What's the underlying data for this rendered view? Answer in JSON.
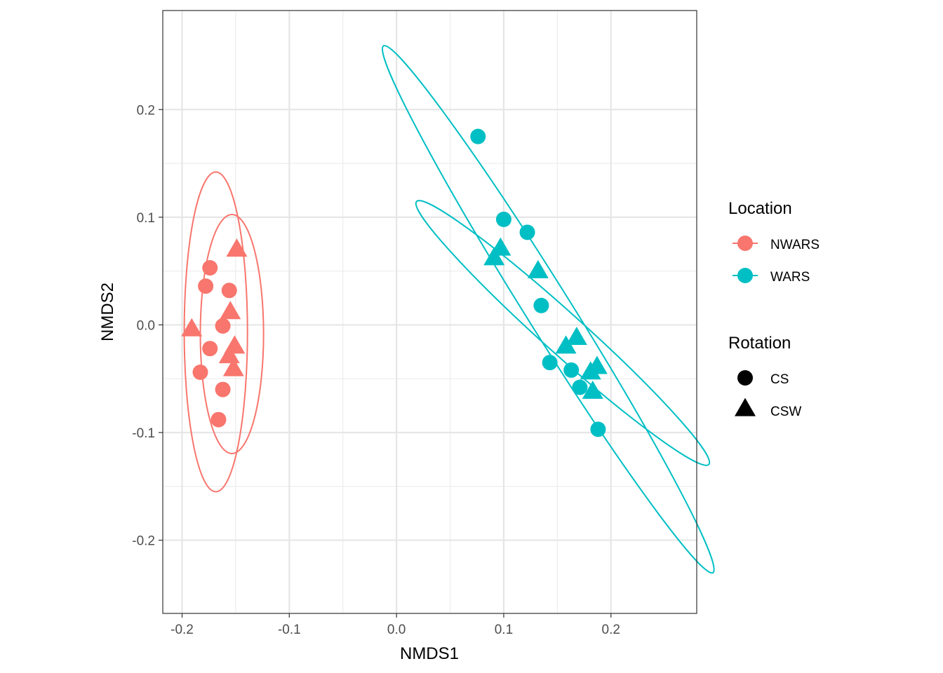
{
  "chart_data": {
    "type": "scatter",
    "xlabel": "NMDS1",
    "ylabel": "NMDS2",
    "xlim": [
      -0.218,
      0.28
    ],
    "ylim": [
      -0.268,
      0.292
    ],
    "xticks": [
      -0.2,
      -0.1,
      0.0,
      0.1,
      0.2
    ],
    "xtick_labels": [
      "-0.2",
      "-0.1",
      "0.0",
      "0.1",
      "0.2"
    ],
    "yticks": [
      -0.2,
      -0.1,
      0.0,
      0.1,
      0.2
    ],
    "ytick_labels": [
      "-0.2",
      "-0.1",
      "0.0",
      "0.1",
      "0.2"
    ],
    "grid": true,
    "legend_position": "right",
    "colors": {
      "NWARS": "#F8766D",
      "WARS": "#00BFC4"
    },
    "legend": {
      "location": {
        "title": "Location",
        "items": [
          "NWARS",
          "WARS"
        ]
      },
      "rotation": {
        "title": "Rotation",
        "items": [
          "CS",
          "CSW"
        ]
      }
    },
    "points": [
      {
        "location": "NWARS",
        "rotation": "CS",
        "x": -0.174,
        "y": 0.053
      },
      {
        "location": "NWARS",
        "rotation": "CS",
        "x": -0.178,
        "y": 0.036
      },
      {
        "location": "NWARS",
        "rotation": "CS",
        "x": -0.156,
        "y": 0.032
      },
      {
        "location": "NWARS",
        "rotation": "CS",
        "x": -0.162,
        "y": -0.001
      },
      {
        "location": "NWARS",
        "rotation": "CS",
        "x": -0.174,
        "y": -0.022
      },
      {
        "location": "NWARS",
        "rotation": "CS",
        "x": -0.183,
        "y": -0.044
      },
      {
        "location": "NWARS",
        "rotation": "CS",
        "x": -0.162,
        "y": -0.06
      },
      {
        "location": "NWARS",
        "rotation": "CS",
        "x": -0.166,
        "y": -0.088
      },
      {
        "location": "NWARS",
        "rotation": "CSW",
        "x": -0.149,
        "y": 0.069
      },
      {
        "location": "NWARS",
        "rotation": "CSW",
        "x": -0.191,
        "y": -0.005
      },
      {
        "location": "NWARS",
        "rotation": "CSW",
        "x": -0.155,
        "y": 0.011
      },
      {
        "location": "NWARS",
        "rotation": "CSW",
        "x": -0.151,
        "y": -0.021
      },
      {
        "location": "NWARS",
        "rotation": "CSW",
        "x": -0.156,
        "y": -0.03
      },
      {
        "location": "NWARS",
        "rotation": "CSW",
        "x": -0.152,
        "y": -0.042
      },
      {
        "location": "WARS",
        "rotation": "CS",
        "x": 0.076,
        "y": 0.175
      },
      {
        "location": "WARS",
        "rotation": "CS",
        "x": 0.1,
        "y": 0.098
      },
      {
        "location": "WARS",
        "rotation": "CS",
        "x": 0.122,
        "y": 0.086
      },
      {
        "location": "WARS",
        "rotation": "CS",
        "x": 0.135,
        "y": 0.018
      },
      {
        "location": "WARS",
        "rotation": "CS",
        "x": 0.143,
        "y": -0.035
      },
      {
        "location": "WARS",
        "rotation": "CS",
        "x": 0.163,
        "y": -0.042
      },
      {
        "location": "WARS",
        "rotation": "CS",
        "x": 0.171,
        "y": -0.058
      },
      {
        "location": "WARS",
        "rotation": "CS",
        "x": 0.188,
        "y": -0.097
      },
      {
        "location": "WARS",
        "rotation": "CSW",
        "x": 0.097,
        "y": 0.07
      },
      {
        "location": "WARS",
        "rotation": "CSW",
        "x": 0.091,
        "y": 0.061
      },
      {
        "location": "WARS",
        "rotation": "CSW",
        "x": 0.132,
        "y": 0.049
      },
      {
        "location": "WARS",
        "rotation": "CSW",
        "x": 0.168,
        "y": -0.013
      },
      {
        "location": "WARS",
        "rotation": "CSW",
        "x": 0.158,
        "y": -0.021
      },
      {
        "location": "WARS",
        "rotation": "CSW",
        "x": 0.187,
        "y": -0.04
      },
      {
        "location": "WARS",
        "rotation": "CSW",
        "x": 0.181,
        "y": -0.045
      },
      {
        "location": "WARS",
        "rotation": "CSW",
        "x": 0.183,
        "y": -0.063
      }
    ],
    "ellipses": [
      {
        "location": "NWARS",
        "rotation": "CS",
        "cx": -0.1685,
        "cy": -0.0065,
        "rx": 0.0295,
        "ry": 0.1485,
        "angle_deg": 0
      },
      {
        "location": "NWARS",
        "rotation": "CSW",
        "cx": -0.1535,
        "cy": -0.0085,
        "rx": 0.0295,
        "ry": 0.111,
        "angle_deg": 0
      },
      {
        "location": "WARS",
        "rotation": "CS",
        "cx": 0.1415,
        "cy": 0.0145,
        "rx": 0.021,
        "ry": 0.2885,
        "angle_deg": -32
      },
      {
        "location": "WARS",
        "rotation": "CSW",
        "cx": 0.155,
        "cy": -0.0075,
        "rx": 0.019,
        "ry": 0.1825,
        "angle_deg": -48
      }
    ]
  }
}
